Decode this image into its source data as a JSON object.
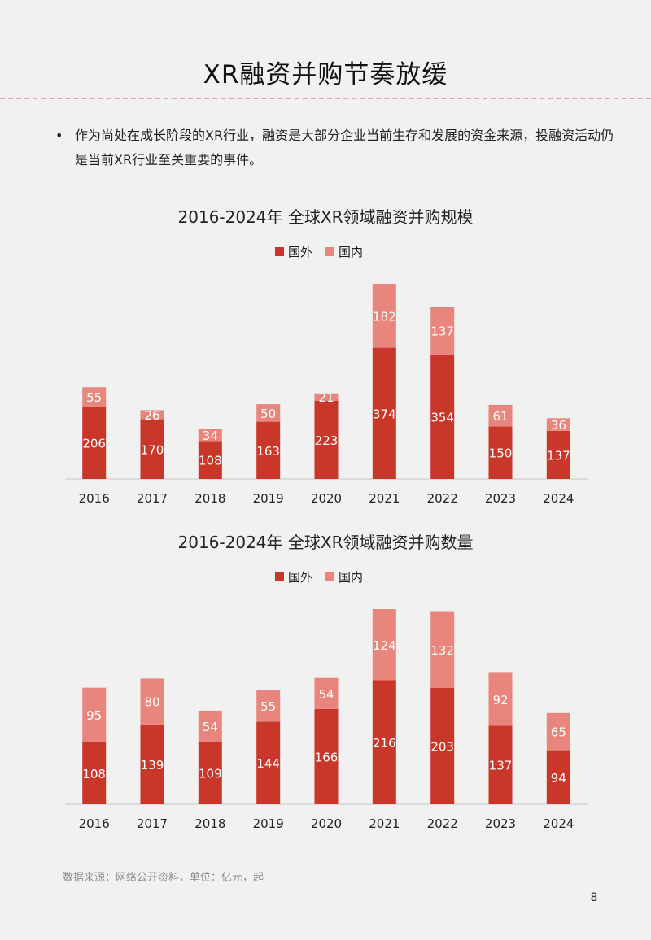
{
  "page": {
    "title": "XR融资并购节奏放缓",
    "bullet_symbol": "•",
    "intro": "作为尚处在成长阶段的XR行业，融资是大部分企业当前生存和发展的资金来源，投融资活动仍是当前XR行业至关重要的事件。",
    "source": "数据来源：网络公开资料，单位：亿元，起",
    "page_number": "8"
  },
  "colors": {
    "overseas": "#c9362a",
    "domestic": "#e8857c",
    "axis": "#c8c8c8",
    "label": "#ffffff"
  },
  "chart_data": [
    {
      "type": "bar",
      "stacked": true,
      "title": "2016-2024年 全球XR领域融资并购规模",
      "legend_position": "top-center",
      "categories": [
        "2016",
        "2017",
        "2018",
        "2019",
        "2020",
        "2021",
        "2022",
        "2023",
        "2024"
      ],
      "series": [
        {
          "name": "国外",
          "values": [
            206,
            170,
            108,
            163,
            223,
            374,
            354,
            150,
            137
          ]
        },
        {
          "name": "国内",
          "values": [
            55,
            26,
            34,
            50,
            21,
            182,
            137,
            61,
            36
          ]
        }
      ],
      "ylim": [
        0,
        556
      ],
      "grid": false
    },
    {
      "type": "bar",
      "stacked": true,
      "title": "2016-2024年 全球XR领域融资并购数量",
      "legend_position": "top-center",
      "categories": [
        "2016",
        "2017",
        "2018",
        "2019",
        "2020",
        "2021",
        "2022",
        "2023",
        "2024"
      ],
      "series": [
        {
          "name": "国外",
          "values": [
            108,
            139,
            109,
            144,
            166,
            216,
            203,
            137,
            94
          ]
        },
        {
          "name": "国内",
          "values": [
            95,
            80,
            54,
            55,
            54,
            124,
            132,
            92,
            65
          ]
        }
      ],
      "ylim": [
        0,
        340
      ],
      "grid": false
    }
  ]
}
